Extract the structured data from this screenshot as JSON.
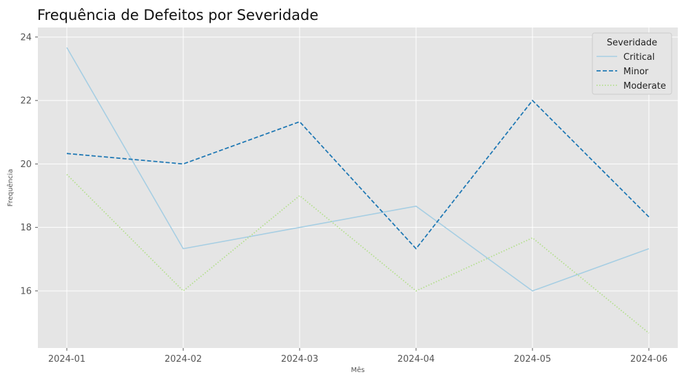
{
  "chart_data": {
    "type": "line",
    "title": "Frequência de Defeitos por Severidade",
    "xlabel": "Mês",
    "ylabel": "Frequência",
    "x": [
      "2024-01",
      "2024-02",
      "2024-03",
      "2024-04",
      "2024-05",
      "2024-06"
    ],
    "ylim": [
      14.2,
      24.3
    ],
    "yticks": [
      16,
      18,
      20,
      22,
      24
    ],
    "grid": true,
    "legend": {
      "title": "Severidade",
      "placement": "top-right"
    },
    "series": [
      {
        "name": "Critical",
        "color": "#a6cee3",
        "dash": "solid",
        "values": [
          23.67,
          17.33,
          18.0,
          18.67,
          16.0,
          17.33
        ]
      },
      {
        "name": "Minor",
        "color": "#1f78b4",
        "dash": "dashed",
        "values": [
          20.33,
          20.0,
          21.33,
          17.33,
          22.0,
          18.33
        ]
      },
      {
        "name": "Moderate",
        "color": "#b2df8a",
        "dash": "dotted",
        "values": [
          19.67,
          16.0,
          19.0,
          16.0,
          17.67,
          14.67
        ]
      }
    ]
  }
}
